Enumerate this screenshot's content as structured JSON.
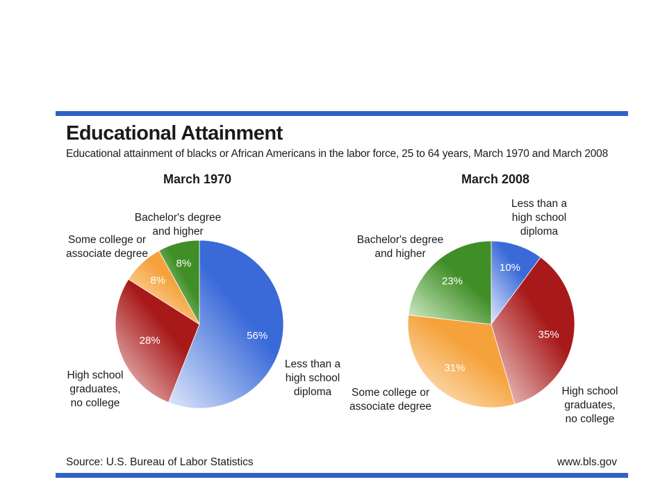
{
  "header": {
    "title": "Educational Attainment",
    "subtitle": "Educational attainment of blacks or African Americans in the labor force, 25 to 64 years, March 1970 and March 2008"
  },
  "footer": {
    "source": "Source: U.S. Bureau of Labor Statistics",
    "website": "www.bls.gov"
  },
  "colors": {
    "rule": "#2f61c7",
    "less_than_hs": "#3a6ad8",
    "hs_grad": "#a81a1a",
    "some_college": "#f5a23c",
    "bachelors": "#3f8e26"
  },
  "chart_data": [
    {
      "type": "pie",
      "title": "March 1970",
      "slices": [
        {
          "label": [
            "Less than a",
            "high school",
            "diploma"
          ],
          "value": 56,
          "value_label": "56%",
          "color": "#3a6ad8",
          "highlight": "#dfe8fb"
        },
        {
          "label": [
            "High school",
            "graduates,",
            "no college"
          ],
          "value": 28,
          "value_label": "28%",
          "color": "#a81a1a",
          "highlight": "#f3d6d6"
        },
        {
          "label": [
            "Some college or",
            "associate degree"
          ],
          "value": 8,
          "value_label": "8%",
          "color": "#f5a23c",
          "highlight": "#fff0d8"
        },
        {
          "label": [
            "Bachelor's degree",
            "and higher"
          ],
          "value": 8,
          "value_label": "8%",
          "color": "#3f8e26",
          "highlight": "#d9f0cf"
        }
      ]
    },
    {
      "type": "pie",
      "title": "March 2008",
      "slices": [
        {
          "label": [
            "Less than a",
            "high school",
            "diploma"
          ],
          "value": 10,
          "value_label": "10%",
          "color": "#3a6ad8",
          "highlight": "#dfe8fb"
        },
        {
          "label": [
            "High school",
            "graduates,",
            "no college"
          ],
          "value": 35,
          "value_label": "35%",
          "color": "#a81a1a",
          "highlight": "#f3d6d6"
        },
        {
          "label": [
            "Some college or",
            "associate degree"
          ],
          "value": 31,
          "value_label": "31%",
          "color": "#f5a23c",
          "highlight": "#fff0d8"
        },
        {
          "label": [
            "Bachelor's degree",
            "and higher"
          ],
          "value": 23,
          "value_label": "23%",
          "color": "#3f8e26",
          "highlight": "#d9f0cf"
        }
      ]
    }
  ]
}
